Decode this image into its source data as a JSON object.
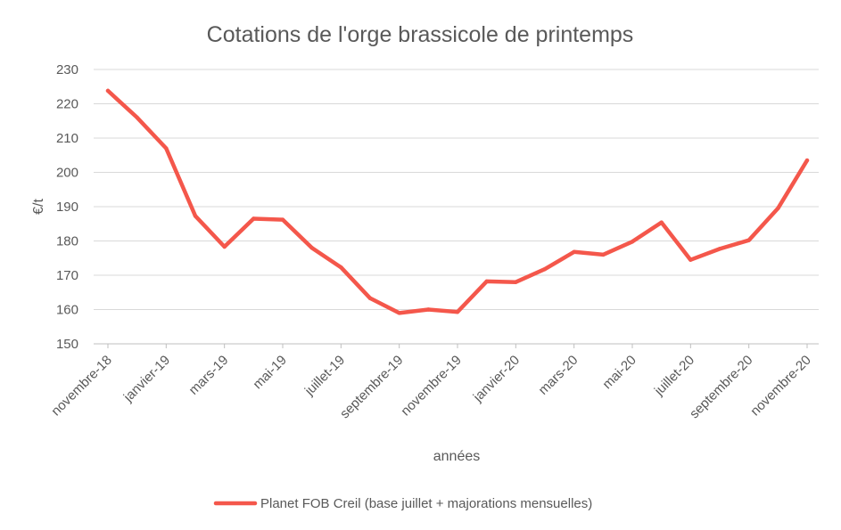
{
  "chart_data": {
    "type": "line",
    "title": "Cotations de l'orge brassicole de printemps",
    "xlabel": "années",
    "ylabel": "€/t",
    "ylim": [
      150,
      230
    ],
    "yticks": [
      150,
      160,
      170,
      180,
      190,
      200,
      210,
      220,
      230
    ],
    "grid": true,
    "legend_position": "bottom",
    "x_tick_labels": [
      "novembre-18",
      "janvier-19",
      "mars-19",
      "mai-19",
      "juillet-19",
      "septembre-19",
      "novembre-19",
      "janvier-20",
      "mars-20",
      "mai-20",
      "juillet-20",
      "septembre-20",
      "novembre-20"
    ],
    "series": [
      {
        "name": "Planet FOB Creil (base juillet + majorations mensuelles)",
        "color": "#f4574b",
        "values": [
          223.8,
          216.0,
          207.0,
          187.3,
          178.3,
          186.5,
          186.2,
          178.0,
          172.3,
          163.3,
          159.0,
          160.0,
          159.3,
          168.2,
          168.0,
          171.8,
          176.8,
          176.0,
          179.8,
          185.4,
          174.5,
          177.7,
          180.2,
          189.5,
          203.5
        ]
      }
    ]
  }
}
